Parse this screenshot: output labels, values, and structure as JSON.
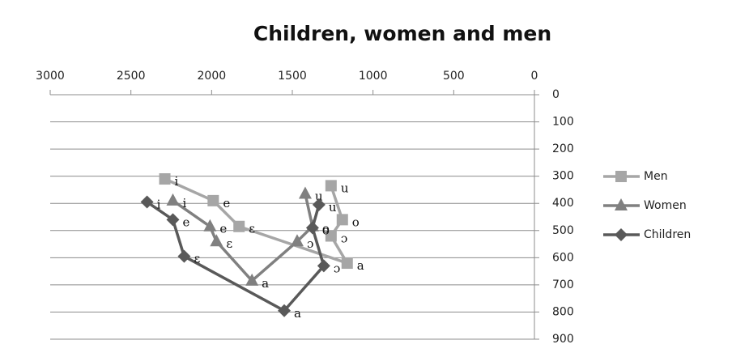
{
  "chart_data": {
    "type": "line",
    "title": "Children, women and men",
    "xlim": [
      3000,
      0
    ],
    "xticks": [
      3000,
      2500,
      2000,
      1500,
      1000,
      500,
      0
    ],
    "ylim": [
      900,
      0
    ],
    "yticks": [
      0,
      100,
      200,
      300,
      400,
      500,
      600,
      700,
      800,
      900
    ],
    "grid": true,
    "legend": "right",
    "series": [
      {
        "name": "Men",
        "color": "#a6a6a6",
        "marker": "square",
        "x": [
          2290,
          1990,
          1830,
          1160,
          1260,
          1190,
          1260
        ],
        "values": [
          310,
          390,
          485,
          620,
          520,
          460,
          335
        ],
        "point_labels": [
          "i",
          "e",
          "ɛ",
          "a",
          "ɔ",
          "o",
          "u"
        ]
      },
      {
        "name": "Women",
        "color": "#808080",
        "marker": "triangle",
        "x": [
          2240,
          2010,
          1970,
          1750,
          1470,
          1375,
          1420
        ],
        "values": [
          390,
          485,
          540,
          685,
          540,
          485,
          365
        ],
        "point_labels": [
          "i",
          "e",
          "ɛ",
          "a",
          "ɔ",
          "o",
          "u"
        ]
      },
      {
        "name": "Children",
        "color": "#595959",
        "marker": "diamond",
        "x": [
          2400,
          2240,
          2170,
          1550,
          1305,
          1375,
          1335
        ],
        "values": [
          395,
          460,
          595,
          795,
          630,
          490,
          405
        ],
        "point_labels": [
          "i",
          "e",
          "ɛ",
          "a",
          "ɔ",
          "o",
          "u"
        ]
      }
    ]
  }
}
